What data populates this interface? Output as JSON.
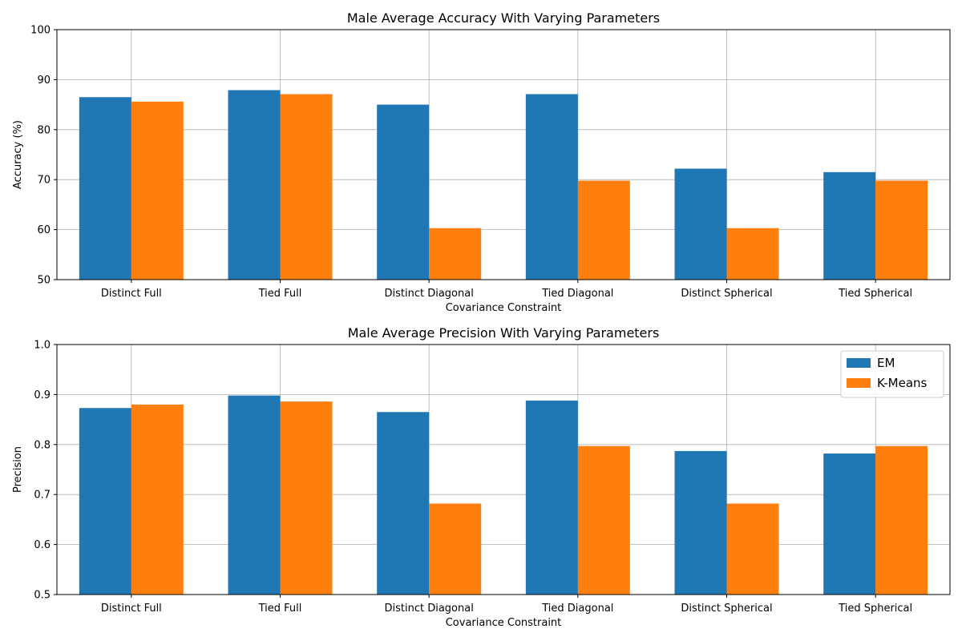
{
  "chart_data": [
    {
      "type": "bar",
      "title": "Male Average Accuracy With Varying Parameters",
      "xlabel": "Covariance Constraint",
      "ylabel": "Accuracy (%)",
      "ylim": [
        50,
        100
      ],
      "yticks": [
        "50",
        "60",
        "70",
        "80",
        "90",
        "100"
      ],
      "categories": [
        "Distinct Full",
        "Tied Full",
        "Distinct Diagonal",
        "Tied Diagonal",
        "Distinct Spherical",
        "Tied Spherical"
      ],
      "grid": true,
      "legend": null,
      "series": [
        {
          "name": "EM",
          "color": "#1f77b4",
          "values": [
            86.5,
            87.9,
            85.0,
            87.1,
            72.2,
            71.5
          ]
        },
        {
          "name": "K-Means",
          "color": "#ff7f0e",
          "values": [
            85.6,
            87.1,
            60.3,
            69.8,
            60.3,
            69.8
          ]
        }
      ]
    },
    {
      "type": "bar",
      "title": "Male Average Precision With Varying Parameters",
      "xlabel": "Covariance Constraint",
      "ylabel": "Precision",
      "ylim": [
        0.5,
        1.0
      ],
      "yticks": [
        "0.5",
        "0.6",
        "0.7",
        "0.8",
        "0.9",
        "1.0"
      ],
      "categories": [
        "Distinct Full",
        "Tied Full",
        "Distinct Diagonal",
        "Tied Diagonal",
        "Distinct Spherical",
        "Tied Spherical"
      ],
      "grid": true,
      "legend": "top-right",
      "series": [
        {
          "name": "EM",
          "color": "#1f77b4",
          "values": [
            0.873,
            0.898,
            0.865,
            0.888,
            0.787,
            0.782
          ]
        },
        {
          "name": "K-Means",
          "color": "#ff7f0e",
          "values": [
            0.88,
            0.886,
            0.682,
            0.797,
            0.682,
            0.797
          ]
        }
      ]
    }
  ]
}
